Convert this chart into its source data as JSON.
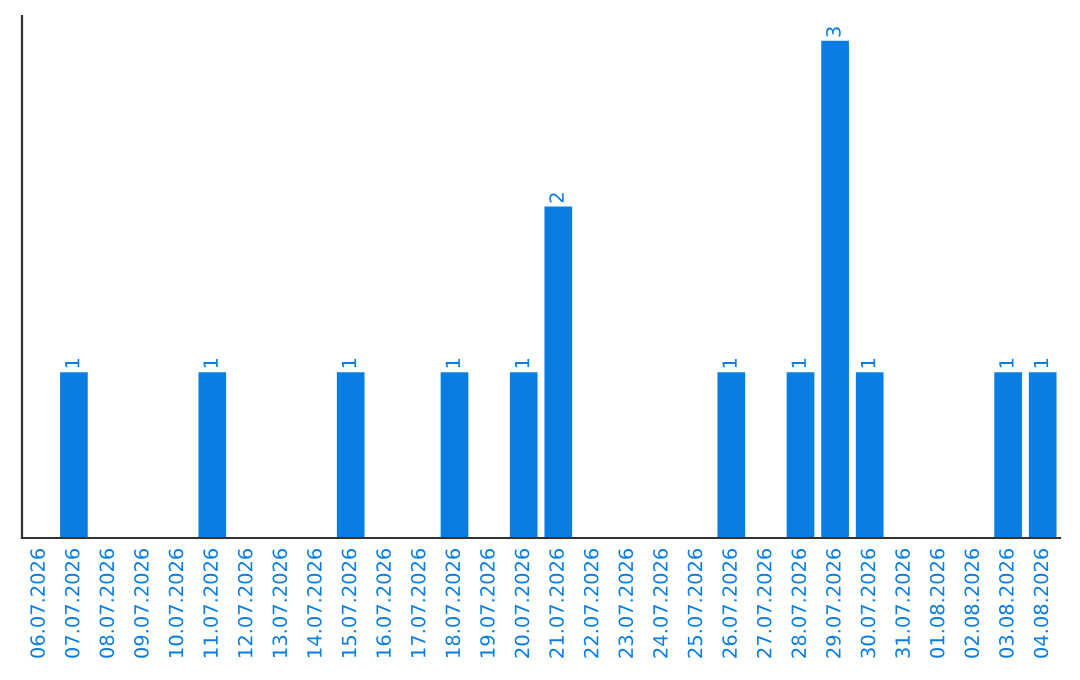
{
  "chart_data": {
    "type": "bar",
    "categories": [
      "06.07.2026",
      "07.07.2026",
      "08.07.2026",
      "09.07.2026",
      "10.07.2026",
      "11.07.2026",
      "12.07.2026",
      "13.07.2026",
      "14.07.2026",
      "15.07.2026",
      "16.07.2026",
      "17.07.2026",
      "18.07.2026",
      "19.07.2026",
      "20.07.2026",
      "21.07.2026",
      "22.07.2026",
      "23.07.2026",
      "24.07.2026",
      "25.07.2026",
      "26.07.2026",
      "27.07.2026",
      "28.07.2026",
      "29.07.2026",
      "30.07.2026",
      "31.07.2026",
      "01.08.2026",
      "02.08.2026",
      "03.08.2026",
      "04.08.2026"
    ],
    "values": [
      0,
      1,
      0,
      0,
      0,
      1,
      0,
      0,
      0,
      1,
      0,
      0,
      1,
      0,
      1,
      2,
      0,
      0,
      0,
      0,
      1,
      0,
      1,
      3,
      1,
      0,
      0,
      0,
      1,
      1
    ],
    "value_labels": [
      null,
      "1",
      null,
      null,
      null,
      "1",
      null,
      null,
      null,
      "1",
      null,
      null,
      "1",
      null,
      "1",
      "2",
      null,
      null,
      null,
      null,
      "1",
      null,
      "1",
      "3",
      "1",
      null,
      null,
      null,
      "1",
      "1"
    ],
    "color": "#0a7de2",
    "ylim": [
      0,
      3.15
    ],
    "tick_labels": "x",
    "grid": false,
    "legend": false
  }
}
